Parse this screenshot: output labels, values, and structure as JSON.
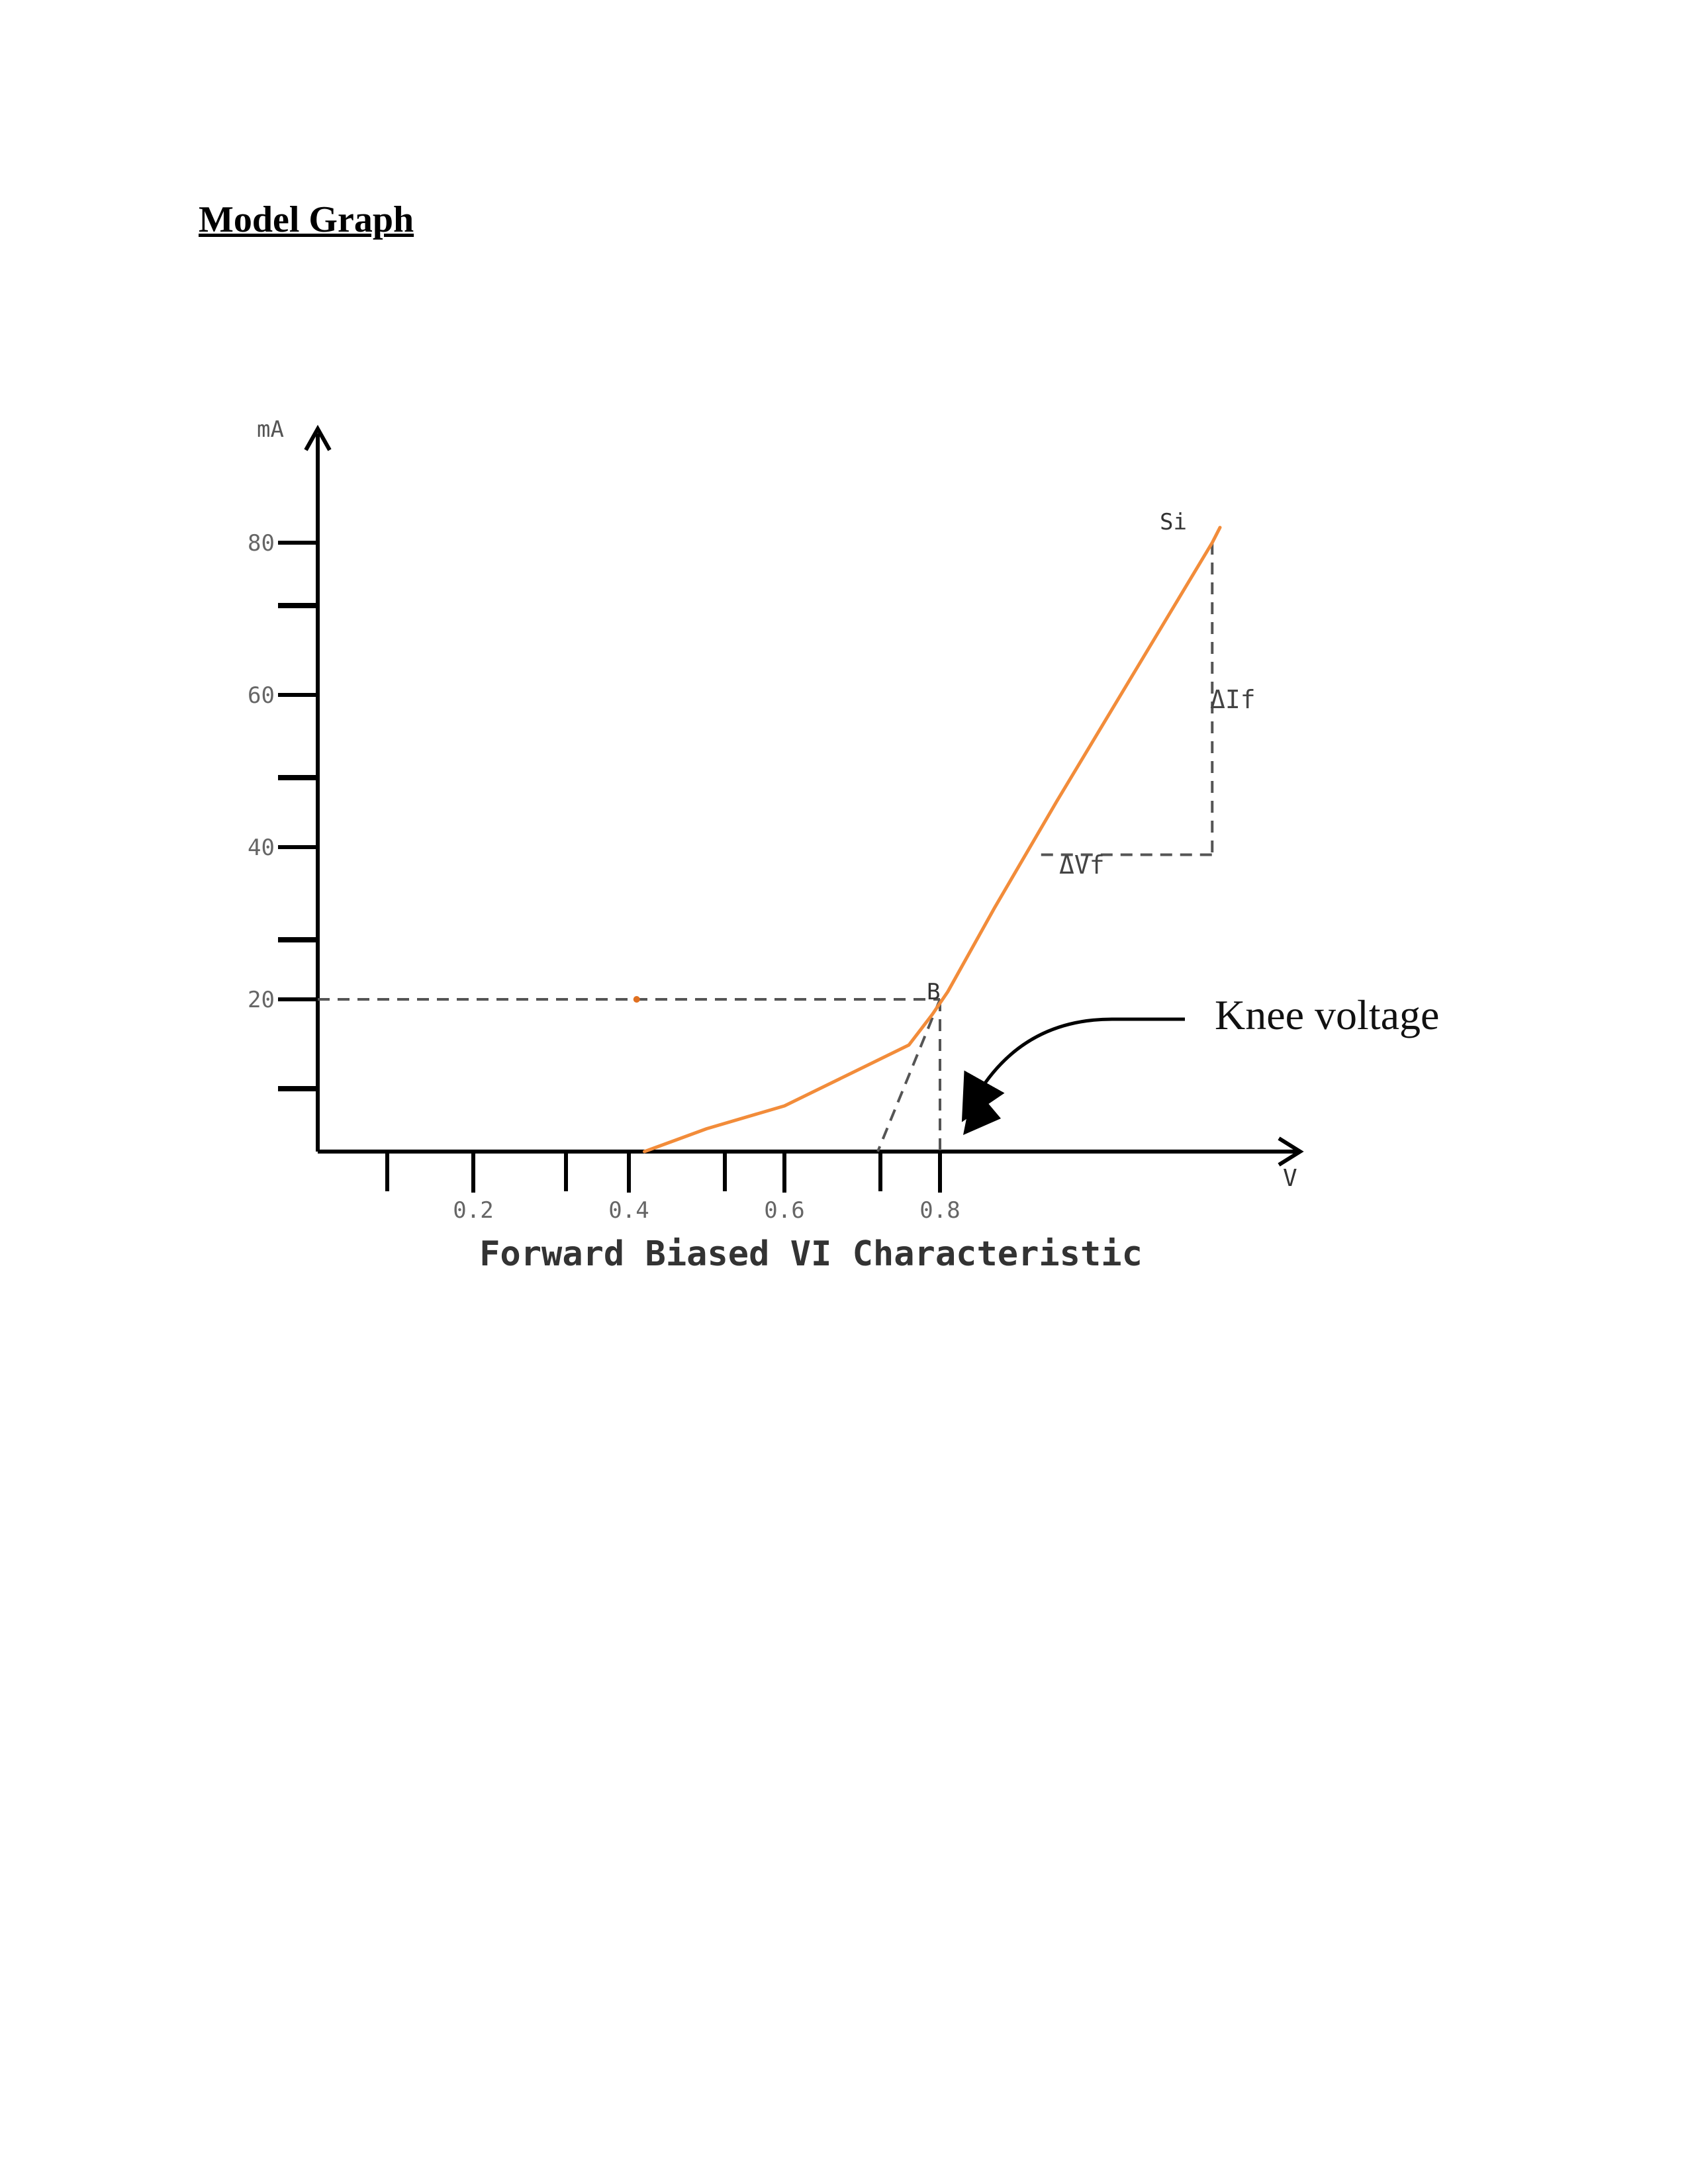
{
  "page": {
    "heading": "Model Graph"
  },
  "chart_data": {
    "type": "line",
    "title": "Forward Biased VI Characteristic",
    "ylabel": "mA",
    "xlabel": "V",
    "xlim": [
      0,
      1.2
    ],
    "ylim": [
      0,
      90
    ],
    "x_tick_labels": [
      "0.2",
      "0.4",
      "0.6",
      "0.8"
    ],
    "x_tick_values": [
      0.2,
      0.4,
      0.6,
      0.8
    ],
    "y_tick_labels": [
      "20",
      "40",
      "60",
      "80"
    ],
    "y_tick_values": [
      20,
      40,
      60,
      80
    ],
    "series": [
      {
        "color": "#f28c3a",
        "x": [
          0.42,
          0.5,
          0.6,
          0.68,
          0.76,
          0.79,
          0.81,
          0.87,
          0.95,
          1.05,
          1.15,
          1.16
        ],
        "y": [
          0,
          3,
          6,
          10,
          14,
          18,
          21,
          32,
          46,
          63,
          80,
          82
        ]
      }
    ],
    "annotations": {
      "point_b_label": "B",
      "point_si_label": "Si",
      "delta_i_label": "ΔIf",
      "delta_v_label": "ΔVf",
      "knee_label": "Knee voltage"
    }
  }
}
